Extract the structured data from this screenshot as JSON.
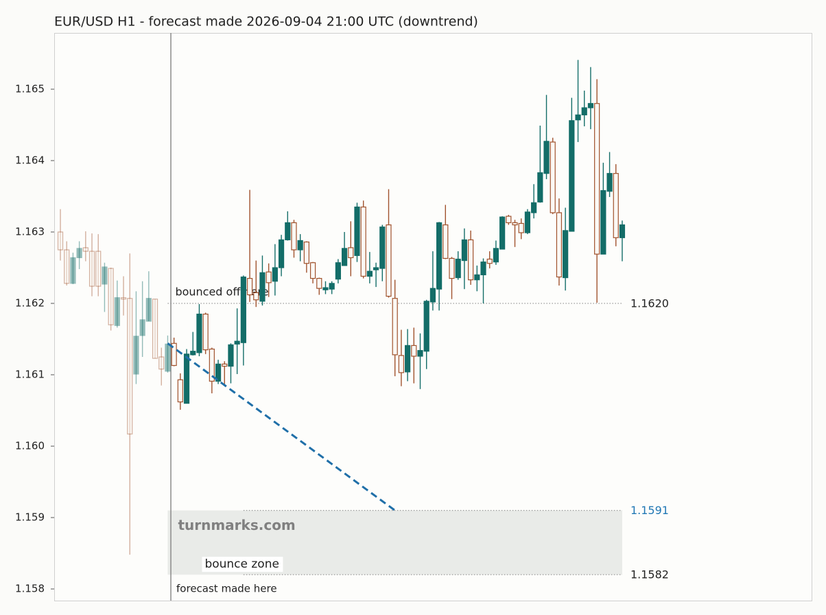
{
  "chart_data": {
    "type": "candlestick",
    "title": "EUR/USD H1 - forecast made 2026-09-04 21:00 UTC (downtrend)",
    "up_color": "#136d68",
    "down_color": "#a0522d",
    "xlim": [
      -0.98,
      119
    ],
    "ylim": [
      1.157837,
      1.165788
    ],
    "yticks": [
      1.158,
      1.159,
      {
        "value": 1.16,
        "label": "1.160"
      },
      1.161,
      1.162,
      1.163,
      1.164,
      1.165
    ],
    "open": [
      1.163,
      1.16275,
      1.16228,
      1.16264,
      1.16278,
      1.16273,
      1.16273,
      1.16227,
      1.16249,
      1.16169,
      1.16208,
      1.16207,
      1.16101,
      1.16155,
      1.16175,
      1.16206,
      1.16125,
      1.16105,
      1.16144,
      1.16093,
      1.1606,
      1.16128,
      1.16131,
      1.16185,
      1.16136,
      1.16091,
      1.16115,
      1.16112,
      1.16143,
      1.16145,
      1.16235,
      1.16215,
      1.16203,
      1.16244,
      1.16231,
      1.1625,
      1.16289,
      1.16313,
      1.16275,
      1.16286,
      1.16257,
      1.16235,
      1.16219,
      1.1622,
      1.16234,
      1.16253,
      1.16278,
      1.16267,
      1.16335,
      1.16238,
      1.16247,
      1.16249,
      1.1631,
      1.16207,
      1.16127,
      1.16104,
      1.16141,
      1.16126,
      1.16133,
      1.16202,
      1.1622,
      1.1631,
      1.16263,
      1.16236,
      1.1626,
      1.16289,
      1.16233,
      1.1624,
      1.16262,
      1.16258,
      1.16276,
      1.16322,
      1.16313,
      1.16312,
      1.16299,
      1.16327,
      1.16342,
      1.16382,
      1.16426,
      1.16327,
      1.16236,
      1.16301,
      1.16457,
      1.16464,
      1.16474,
      1.1648,
      1.16269,
      1.16357,
      1.16382,
      1.16292
    ],
    "high": [
      1.16332,
      1.16287,
      1.16271,
      1.16287,
      1.16301,
      1.16298,
      1.16297,
      1.16257,
      1.1625,
      1.16232,
      1.16238,
      1.1627,
      1.16217,
      1.16231,
      1.16245,
      1.16206,
      1.16138,
      1.16155,
      1.16152,
      1.16102,
      1.16136,
      1.1616,
      1.16199,
      1.16187,
      1.16138,
      1.16121,
      1.16119,
      1.16144,
      1.16193,
      1.16239,
      1.16359,
      1.1626,
      1.16267,
      1.16256,
      1.16283,
      1.16296,
      1.16329,
      1.16317,
      1.16297,
      1.16287,
      1.16258,
      1.16236,
      1.16231,
      1.16231,
      1.16262,
      1.163,
      1.16315,
      1.16341,
      1.16344,
      1.16272,
      1.16257,
      1.1631,
      1.1636,
      1.16233,
      1.16163,
      1.16164,
      1.16166,
      1.16158,
      1.16205,
      1.16273,
      1.16314,
      1.16338,
      1.16265,
      1.16273,
      1.16305,
      1.16302,
      1.16253,
      1.16263,
      1.16273,
      1.16288,
      1.16322,
      1.16324,
      1.16317,
      1.16319,
      1.16332,
      1.16367,
      1.16449,
      1.16492,
      1.16432,
      1.16347,
      1.16334,
      1.16488,
      1.16541,
      1.16498,
      1.16531,
      1.16514,
      1.16397,
      1.16412,
      1.16395,
      1.16316
    ],
    "low": [
      1.1626,
      1.16225,
      1.16227,
      1.16248,
      1.16259,
      1.1621,
      1.1621,
      1.16188,
      1.16162,
      1.16166,
      1.16183,
      1.15848,
      1.16087,
      1.16125,
      1.16175,
      1.16123,
      1.16085,
      1.16103,
      1.16112,
      1.16051,
      1.1606,
      1.16127,
      1.16126,
      1.16129,
      1.16074,
      1.16087,
      1.16085,
      1.16088,
      1.16101,
      1.16113,
      1.16202,
      1.16195,
      1.16197,
      1.16209,
      1.16211,
      1.16238,
      1.16288,
      1.16264,
      1.16259,
      1.16243,
      1.16228,
      1.16212,
      1.16213,
      1.16213,
      1.16228,
      1.16253,
      1.16238,
      1.16258,
      1.16235,
      1.16228,
      1.16223,
      1.16231,
      1.16208,
      1.16098,
      1.16084,
      1.16091,
      1.16088,
      1.1608,
      1.16108,
      1.1619,
      1.1619,
      1.16262,
      1.16206,
      1.16233,
      1.1622,
      1.16226,
      1.16217,
      1.162,
      1.16249,
      1.16254,
      1.16276,
      1.1631,
      1.16279,
      1.1629,
      1.16297,
      1.16319,
      1.16341,
      1.16374,
      1.16325,
      1.16225,
      1.16218,
      1.16301,
      1.16426,
      1.16448,
      1.16444,
      1.16201,
      1.16269,
      1.16349,
      1.1628,
      1.16259
    ],
    "close": [
      1.16275,
      1.16228,
      1.16264,
      1.16277,
      1.16273,
      1.16224,
      1.16224,
      1.16251,
      1.1617,
      1.16208,
      1.16206,
      1.16017,
      1.16154,
      1.16177,
      1.16207,
      1.16123,
      1.16108,
      1.16143,
      1.16113,
      1.16062,
      1.16129,
      1.16133,
      1.16185,
      1.16135,
      1.16091,
      1.16115,
      1.16112,
      1.16142,
      1.16147,
      1.16237,
      1.16212,
      1.16205,
      1.16243,
      1.16229,
      1.1625,
      1.16289,
      1.16313,
      1.16275,
      1.16288,
      1.16256,
      1.16235,
      1.16221,
      1.16222,
      1.16228,
      1.16257,
      1.16277,
      1.16264,
      1.16335,
      1.16238,
      1.16245,
      1.1625,
      1.16307,
      1.1621,
      1.16128,
      1.16103,
      1.16141,
      1.16126,
      1.16134,
      1.16203,
      1.16221,
      1.16313,
      1.16263,
      1.16235,
      1.16262,
      1.16289,
      1.16233,
      1.1624,
      1.16258,
      1.16256,
      1.16277,
      1.16321,
      1.16313,
      1.1631,
      1.16299,
      1.16328,
      1.16341,
      1.16383,
      1.16427,
      1.16327,
      1.16237,
      1.16302,
      1.16456,
      1.16464,
      1.16474,
      1.1648,
      1.16269,
      1.16358,
      1.16382,
      1.16292,
      1.1631
    ],
    "forecast": {
      "x": 17.5,
      "label": "forecast made here"
    },
    "trend_line": {
      "x": [
        17,
        53
      ],
      "y": [
        1.16144,
        1.1591
      ],
      "color": "#1f6fa8"
    },
    "levels": [
      {
        "value": 1.162,
        "label": "1.1620",
        "x": [
          17,
          89
        ],
        "annotation": "bounced off here"
      },
      {
        "value": 1.1591,
        "label": "1.1591",
        "x": [
          29,
          89
        ],
        "color": "#1f77b4"
      },
      {
        "value": 1.1582,
        "label": "1.1582",
        "x": [
          29,
          89
        ]
      }
    ],
    "zone": {
      "y": [
        1.1582,
        1.1591
      ],
      "x": [
        17,
        89
      ],
      "label": "bounce zone"
    },
    "watermark": "turnmarks.com"
  }
}
